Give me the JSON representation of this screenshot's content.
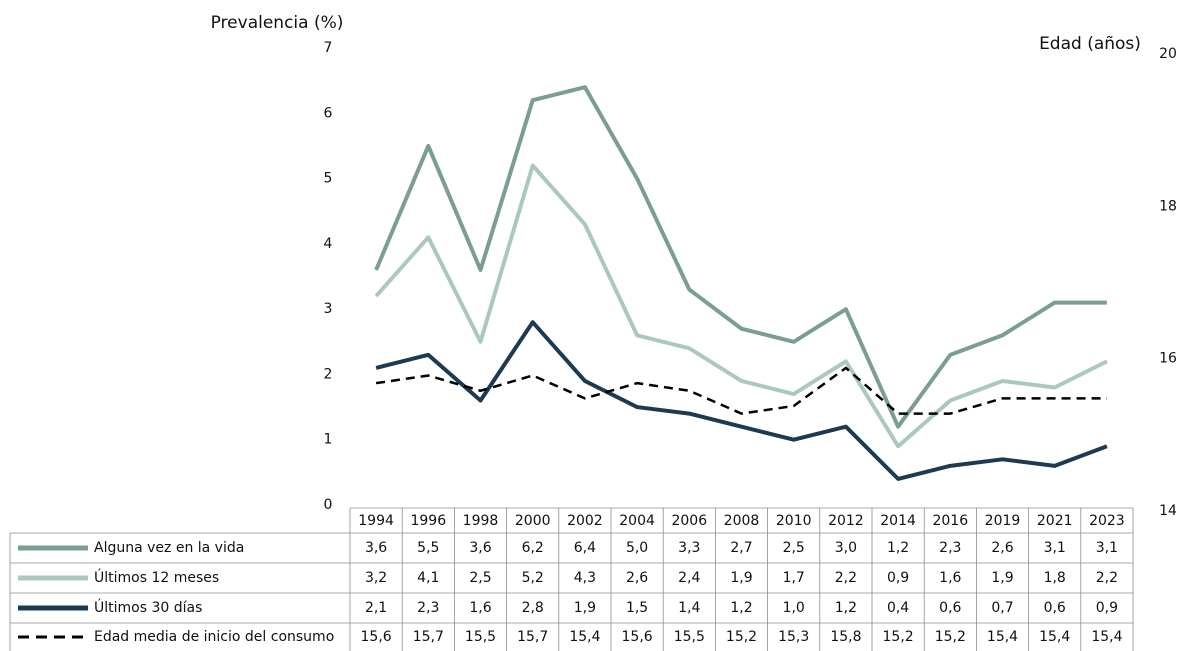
{
  "chart_data": {
    "type": "line",
    "y_label": "Prevalencia (%)",
    "y2_label": "Edad (años)",
    "categories": [
      "1994",
      "1996",
      "1998",
      "2000",
      "2002",
      "2004",
      "2006",
      "2008",
      "2010",
      "2012",
      "2014",
      "2016",
      "2019",
      "2021",
      "2023"
    ],
    "ylim": [
      0,
      7
    ],
    "yticks": [
      0,
      1,
      2,
      3,
      4,
      5,
      6,
      7
    ],
    "y2lim": [
      14,
      20
    ],
    "y2ticks": [
      14,
      16,
      18,
      20
    ],
    "grid": false,
    "series": [
      {
        "name": "Alguna vez en la vida",
        "color": "#7a9e94",
        "values": [
          3.6,
          5.5,
          3.6,
          6.2,
          6.4,
          5.0,
          3.3,
          2.7,
          2.5,
          3.0,
          1.2,
          2.3,
          2.6,
          3.1,
          3.1
        ],
        "value_labels": [
          "3,6",
          "5,5",
          "3,6",
          "6,2",
          "6,4",
          "5,0",
          "3,3",
          "2,7",
          "2,5",
          "3,0",
          "1,2",
          "2,3",
          "2,6",
          "3,1",
          "3,1"
        ]
      },
      {
        "name": "Últimos 12 meses",
        "color": "#abc8c0",
        "values": [
          3.2,
          4.1,
          2.5,
          5.2,
          4.3,
          2.6,
          2.4,
          1.9,
          1.7,
          2.2,
          0.9,
          1.6,
          1.9,
          1.8,
          2.2
        ],
        "value_labels": [
          "3,2",
          "4,1",
          "2,5",
          "5,2",
          "4,3",
          "2,6",
          "2,4",
          "1,9",
          "1,7",
          "2,2",
          "0,9",
          "1,6",
          "1,9",
          "1,8",
          "2,2"
        ]
      },
      {
        "name": "Últimos 30 días",
        "color": "#1c3a52",
        "values": [
          2.1,
          2.3,
          1.6,
          2.8,
          1.9,
          1.5,
          1.4,
          1.2,
          1.0,
          1.2,
          0.4,
          0.6,
          0.7,
          0.6,
          0.9
        ],
        "value_labels": [
          "2,1",
          "2,3",
          "1,6",
          "2,8",
          "1,9",
          "1,5",
          "1,4",
          "1,2",
          "1,0",
          "1,2",
          "0,4",
          "0,6",
          "0,7",
          "0,6",
          "0,9"
        ]
      },
      {
        "name": "Edad media de inicio del  consumo",
        "color": "#000000",
        "axis": "y2",
        "dashed": true,
        "values": [
          15.6,
          15.7,
          15.5,
          15.7,
          15.4,
          15.6,
          15.5,
          15.2,
          15.3,
          15.8,
          15.2,
          15.2,
          15.4,
          15.4,
          15.4
        ],
        "value_labels": [
          "15,6",
          "15,7",
          "15,5",
          "15,7",
          "15,4",
          "15,6",
          "15,5",
          "15,2",
          "15,3",
          "15,8",
          "15,2",
          "15,2",
          "15,4",
          "15,4",
          "15,4"
        ]
      }
    ]
  }
}
